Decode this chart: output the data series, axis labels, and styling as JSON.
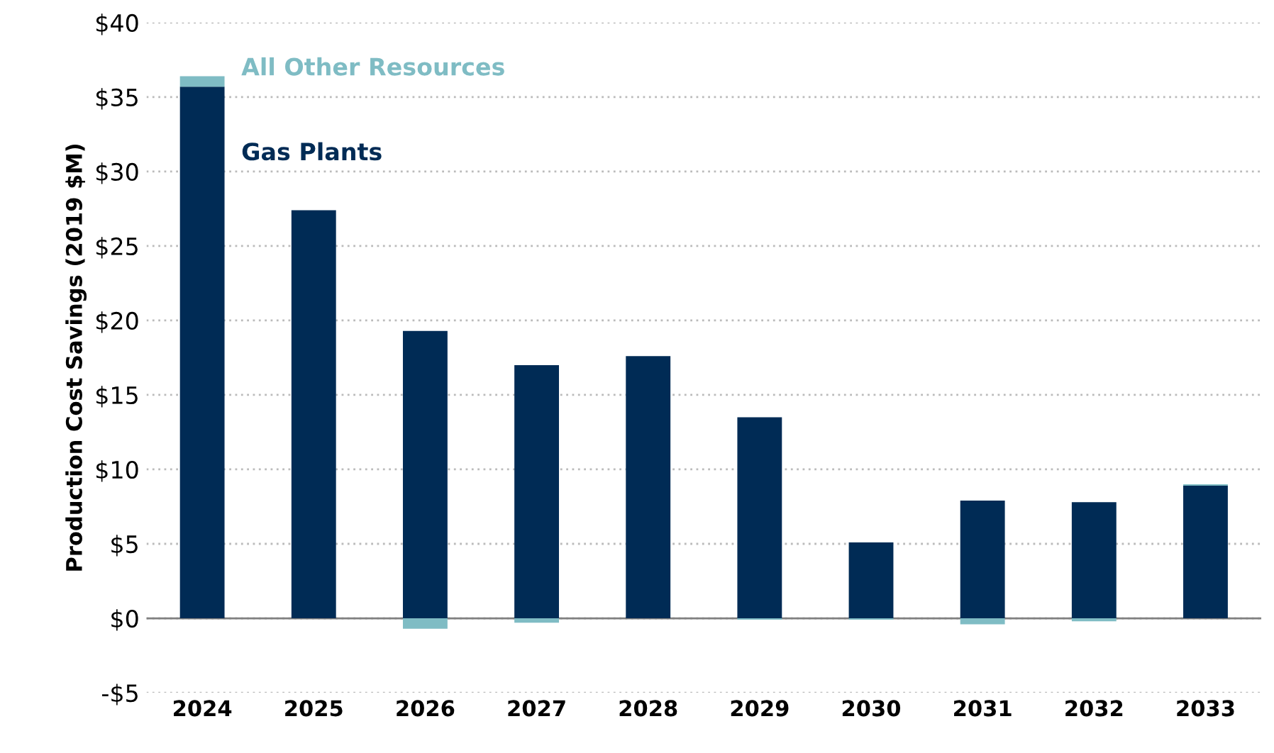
{
  "chart_data": {
    "type": "bar",
    "stacked": true,
    "ylabel": "Production Cost Savings (2019 $M)",
    "categories": [
      "2024",
      "2025",
      "2026",
      "2027",
      "2028",
      "2029",
      "2030",
      "2031",
      "2032",
      "2033"
    ],
    "series": [
      {
        "name": "Gas Plants",
        "color": "#002b55",
        "values": [
          35.7,
          27.4,
          19.3,
          17.0,
          17.6,
          13.5,
          5.1,
          7.9,
          7.8,
          8.9
        ]
      },
      {
        "name": "All Other Resources",
        "color": "#7fbcc4",
        "values": [
          0.7,
          0,
          -0.7,
          -0.3,
          0,
          -0.1,
          -0.1,
          -0.4,
          -0.2,
          0.1
        ]
      }
    ],
    "ylim": [
      -5,
      40
    ],
    "yticks": [
      {
        "value": -5,
        "label": "-$5"
      },
      {
        "value": 0,
        "label": "$0"
      },
      {
        "value": 5,
        "label": "$5"
      },
      {
        "value": 10,
        "label": "$10"
      },
      {
        "value": 15,
        "label": "$15"
      },
      {
        "value": 20,
        "label": "$20"
      },
      {
        "value": 25,
        "label": "$25"
      },
      {
        "value": 30,
        "label": "$30"
      },
      {
        "value": 35,
        "label": "$35"
      },
      {
        "value": 40,
        "label": "$40"
      }
    ],
    "grid": "y"
  }
}
